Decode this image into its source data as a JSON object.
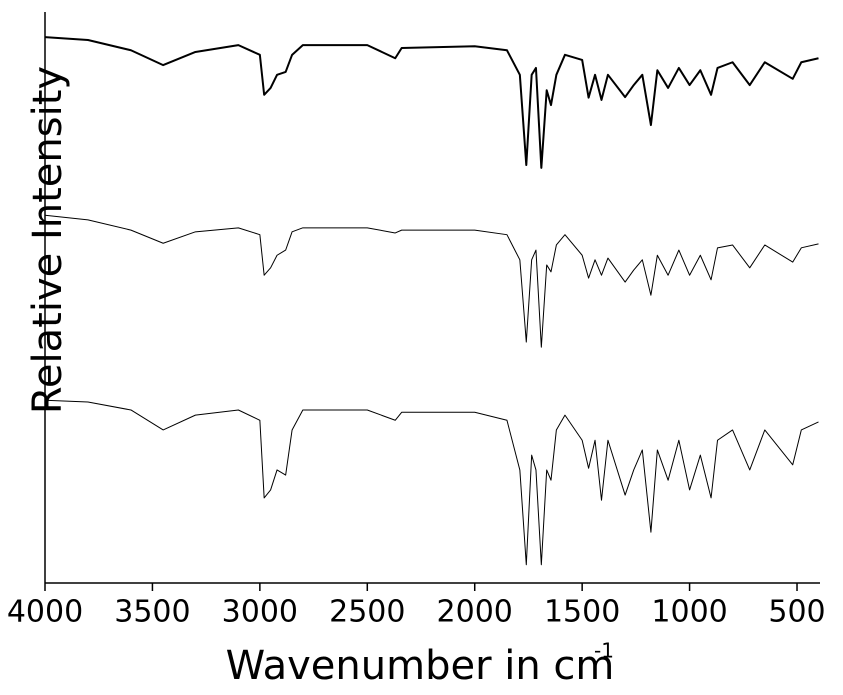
{
  "chart_data": {
    "type": "line",
    "xlabel": "Wavenumber in cm",
    "xlabel_superscript": "-1",
    "ylabel": "Relative Intensity",
    "x": [
      4000,
      3800,
      3600,
      3450,
      3300,
      3100,
      3000,
      2980,
      2950,
      2920,
      2880,
      2850,
      2800,
      2500,
      2370,
      2340,
      2000,
      1850,
      1790,
      1760,
      1735,
      1715,
      1690,
      1665,
      1645,
      1620,
      1580,
      1500,
      1470,
      1440,
      1410,
      1380,
      1300,
      1260,
      1220,
      1180,
      1150,
      1100,
      1050,
      1000,
      950,
      900,
      870,
      800,
      720,
      650,
      520,
      480,
      400
    ],
    "series": [
      {
        "color": "#000000",
        "line_width": 2,
        "values": [
          95.6,
          95.1,
          93.3,
          90.7,
          93.0,
          94.2,
          92.5,
          85.5,
          86.7,
          89.0,
          89.5,
          92.5,
          94.2,
          94.2,
          91.9,
          93.7,
          94.0,
          93.3,
          89.0,
          73.2,
          89.0,
          90.2,
          72.7,
          86.3,
          83.7,
          89.0,
          92.5,
          91.6,
          85.0,
          89.0,
          84.6,
          89.0,
          85.1,
          87.2,
          89.0,
          80.2,
          89.8,
          86.7,
          90.2,
          87.2,
          89.8,
          85.5,
          90.2,
          91.2,
          87.2,
          91.2,
          88.3,
          91.2,
          91.9
        ]
      },
      {
        "color": "#000000",
        "line_width": 1,
        "values": [
          64.4,
          63.6,
          61.8,
          59.5,
          61.5,
          62.2,
          61.0,
          53.9,
          55.2,
          57.4,
          58.3,
          61.5,
          62.2,
          62.2,
          61.3,
          61.8,
          61.8,
          61.0,
          56.6,
          42.2,
          56.6,
          58.3,
          41.3,
          55.7,
          54.5,
          59.2,
          61.0,
          57.4,
          53.4,
          56.6,
          53.9,
          56.9,
          52.7,
          54.8,
          56.6,
          50.4,
          57.4,
          53.9,
          58.3,
          53.9,
          57.4,
          53.1,
          58.7,
          59.2,
          55.2,
          59.2,
          56.2,
          58.7,
          59.4
        ]
      },
      {
        "color": "#000000",
        "line_width": 1,
        "values": [
          32.0,
          31.7,
          30.3,
          26.8,
          29.4,
          30.3,
          28.5,
          14.9,
          16.3,
          19.8,
          18.9,
          26.8,
          30.3,
          30.3,
          28.5,
          29.9,
          29.9,
          28.5,
          19.8,
          3.2,
          22.4,
          19.8,
          3.2,
          19.8,
          18.0,
          26.8,
          29.4,
          25.0,
          20.1,
          25.0,
          14.5,
          25.0,
          15.4,
          19.8,
          23.3,
          8.9,
          23.3,
          18.0,
          25.0,
          16.3,
          22.4,
          14.9,
          25.0,
          26.8,
          19.8,
          26.8,
          20.7,
          26.8,
          28.2
        ]
      }
    ],
    "xlim": [
      4000,
      400
    ],
    "xticks": [
      4000,
      3500,
      3000,
      2500,
      2000,
      1500,
      1000,
      500
    ],
    "ylim": [
      0,
      100
    ]
  }
}
